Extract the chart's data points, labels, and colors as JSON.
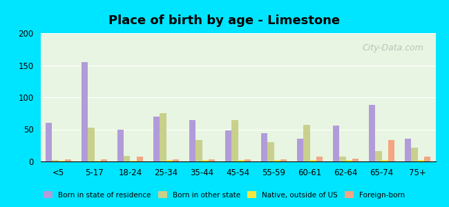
{
  "title": "Place of birth by age - Limestone",
  "categories": [
    "<5",
    "5-17",
    "18-24",
    "25-34",
    "35-44",
    "45-54",
    "55-59",
    "60-61",
    "62-64",
    "65-74",
    "75+"
  ],
  "series": {
    "Born in state of residence": [
      60,
      155,
      50,
      70,
      65,
      48,
      44,
      35,
      56,
      88,
      35
    ],
    "Born in other state": [
      2,
      53,
      9,
      75,
      33,
      65,
      30,
      57,
      8,
      16,
      21
    ],
    "Native, outside of US": [
      1,
      1,
      1,
      2,
      2,
      2,
      2,
      2,
      2,
      2,
      2
    ],
    "Foreign-born": [
      3,
      3,
      7,
      3,
      3,
      3,
      3,
      7,
      4,
      33,
      7
    ]
  },
  "colors": {
    "Born in state of residence": "#b19cd9",
    "Born in other state": "#c8d08c",
    "Native, outside of US": "#f5e642",
    "Foreign-born": "#f4a582"
  },
  "ylim": [
    0,
    200
  ],
  "yticks": [
    0,
    50,
    100,
    150,
    200
  ],
  "background_color": "#e8f5e2",
  "outer_background": "#00e5ff",
  "watermark": "City-Data.com",
  "legend_labels": [
    "Born in state of residence",
    "Born in other state",
    "Native, outside of US",
    "Foreign-born"
  ]
}
